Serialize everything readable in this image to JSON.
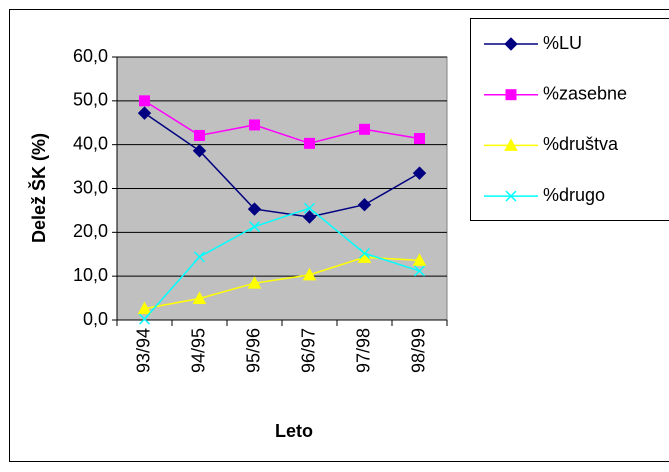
{
  "chart_data": {
    "type": "line",
    "y_label": "Delež ŠK (%)",
    "x_label": "Leto",
    "categories": [
      "93/94",
      "94/95",
      "95/96",
      "96/97",
      "97/98",
      "98/99"
    ],
    "series": [
      {
        "name": "%LU",
        "color": "#000080",
        "marker": "diamond",
        "values": [
          47.2,
          38.6,
          25.3,
          23.5,
          26.3,
          33.5
        ]
      },
      {
        "name": "%zasebne",
        "color": "#ff00ff",
        "marker": "square",
        "values": [
          50.0,
          42.1,
          44.5,
          40.3,
          43.5,
          41.4
        ]
      },
      {
        "name": "%društva",
        "color": "#ffff00",
        "marker": "triangle",
        "values": [
          2.6,
          4.9,
          8.4,
          10.3,
          14.3,
          13.6
        ]
      },
      {
        "name": "%drugo",
        "color": "#00ffff",
        "marker": "x",
        "values": [
          0.2,
          14.4,
          21.3,
          25.5,
          15.2,
          11.2
        ]
      }
    ],
    "ylim": [
      0,
      60
    ],
    "yticks": [
      {
        "value": 0,
        "label": "0,0"
      },
      {
        "value": 10,
        "label": "10,0"
      },
      {
        "value": 20,
        "label": "20,0"
      },
      {
        "value": 30,
        "label": "30,0"
      },
      {
        "value": 40,
        "label": "40,0"
      },
      {
        "value": 50,
        "label": "50,0"
      },
      {
        "value": 60,
        "label": "60,0"
      }
    ],
    "grid": true,
    "plot_background": "#c0c0c0",
    "legend": "right"
  }
}
